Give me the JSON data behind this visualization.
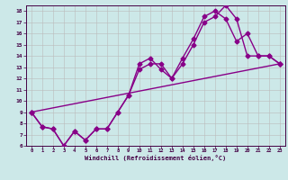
{
  "xlabel": "Windchill (Refroidissement éolien,°C)",
  "bg_color": "#cce8e8",
  "line_color": "#880088",
  "grid_color": "#bbbbbb",
  "xlim": [
    -0.5,
    23.5
  ],
  "ylim": [
    6,
    18.5
  ],
  "xticks": [
    0,
    1,
    2,
    3,
    4,
    5,
    6,
    7,
    8,
    9,
    10,
    11,
    12,
    13,
    14,
    15,
    16,
    17,
    18,
    19,
    20,
    21,
    22,
    23
  ],
  "yticks": [
    6,
    7,
    8,
    9,
    10,
    11,
    12,
    13,
    14,
    15,
    16,
    17,
    18
  ],
  "line1_x": [
    0,
    1,
    2,
    3,
    4,
    5,
    6,
    7,
    8,
    9,
    10,
    11,
    12,
    13,
    14,
    15,
    16,
    17,
    18,
    19,
    20,
    21,
    22,
    23
  ],
  "line1_y": [
    9,
    7.7,
    7.5,
    6.0,
    7.3,
    6.5,
    7.5,
    7.5,
    9.0,
    10.5,
    12.8,
    13.3,
    13.3,
    12.0,
    13.3,
    15.0,
    17.0,
    17.5,
    18.5,
    17.3,
    14.0,
    14.0,
    14.0,
    13.3
  ],
  "line2_x": [
    0,
    1,
    2,
    3,
    4,
    5,
    6,
    7,
    8,
    9,
    10,
    11,
    12,
    13,
    14,
    15,
    16,
    17,
    18,
    19,
    20,
    21,
    22,
    23
  ],
  "line2_y": [
    9,
    7.7,
    7.5,
    6.0,
    7.3,
    6.5,
    7.5,
    7.5,
    9.0,
    10.5,
    13.3,
    13.8,
    12.8,
    12.0,
    13.8,
    15.5,
    17.5,
    18.0,
    17.3,
    15.3,
    16.0,
    14.0,
    14.0,
    13.3
  ],
  "line3_x": [
    0,
    23
  ],
  "line3_y": [
    9,
    13.3
  ],
  "marker": "D",
  "marker_size": 2.5,
  "linewidth": 1.0
}
